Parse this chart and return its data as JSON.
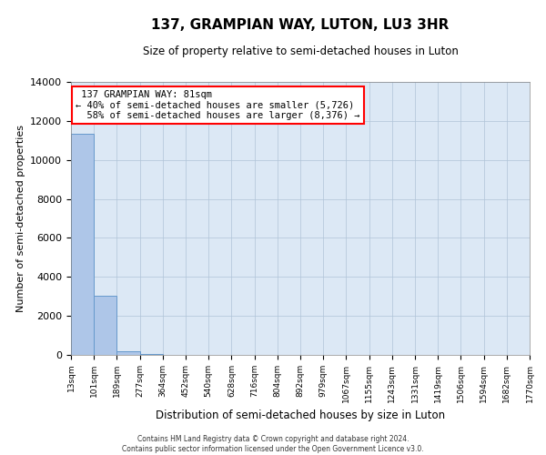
{
  "title": "137, GRAMPIAN WAY, LUTON, LU3 3HR",
  "subtitle": "Size of property relative to semi-detached houses in Luton",
  "xlabel": "Distribution of semi-detached houses by size in Luton",
  "ylabel": "Number of semi-detached properties",
  "property_size": 81,
  "property_label": "137 GRAMPIAN WAY: 81sqm",
  "pct_smaller": 40,
  "count_smaller": 5726,
  "pct_larger": 58,
  "count_larger": 8376,
  "bin_edges": [
    13,
    101,
    189,
    277,
    364,
    452,
    540,
    628,
    716,
    804,
    892,
    979,
    1067,
    1155,
    1243,
    1331,
    1419,
    1506,
    1594,
    1682,
    1770
  ],
  "bar_heights": [
    11350,
    3050,
    190,
    40,
    10,
    5,
    2,
    1,
    1,
    0,
    0,
    0,
    0,
    0,
    0,
    0,
    0,
    0,
    0,
    0
  ],
  "bar_color": "#aec6e8",
  "bar_edge_color": "#6699cc",
  "bg_color": "#dce8f5",
  "grid_color": "#b0c4d8",
  "ylim": [
    0,
    14000
  ],
  "yticks": [
    0,
    2000,
    4000,
    6000,
    8000,
    10000,
    12000,
    14000
  ],
  "footer_line1": "Contains HM Land Registry data © Crown copyright and database right 2024.",
  "footer_line2": "Contains public sector information licensed under the Open Government Licence v3.0."
}
